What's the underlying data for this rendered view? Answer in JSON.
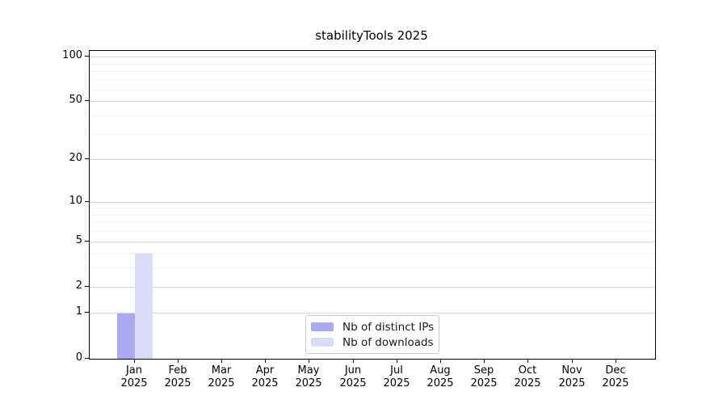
{
  "chart_data": {
    "type": "bar",
    "title": "stabilityTools 2025",
    "categories": [
      "Jan 2025",
      "Feb 2025",
      "Mar 2025",
      "Apr 2025",
      "May 2025",
      "Jun 2025",
      "Jul 2025",
      "Aug 2025",
      "Sep 2025",
      "Oct 2025",
      "Nov 2025",
      "Dec 2025"
    ],
    "series": [
      {
        "name": "Nb of distinct IPs",
        "color": "#aaaaf4",
        "values": [
          1,
          0,
          0,
          0,
          0,
          0,
          0,
          0,
          0,
          0,
          0,
          0
        ]
      },
      {
        "name": "Nb of downloads",
        "color": "#dbdbf8",
        "values": [
          4,
          0,
          0,
          0,
          0,
          0,
          0,
          0,
          0,
          0,
          0,
          0
        ]
      }
    ],
    "xlabel": "",
    "ylabel": "",
    "yscale": "log1p",
    "ylim": [
      0,
      110
    ],
    "yticks": [
      0,
      1,
      2,
      5,
      10,
      20,
      50,
      100
    ],
    "minor_gridline_values": [
      3,
      4,
      6,
      7,
      8,
      9,
      30,
      40,
      60,
      70,
      80,
      90
    ],
    "grid": "horizontal",
    "legend_position": "inside-bottom-center"
  },
  "colors": {
    "bar_distinct_ips": "#aaaaf4",
    "bar_downloads": "#dbdbf8",
    "grid_major": "#d6d6d6",
    "grid_minor": "#efefef",
    "axis_frame": "#000000",
    "legend_border": "#cccccc",
    "text": "#000000",
    "background": "#ffffff"
  }
}
